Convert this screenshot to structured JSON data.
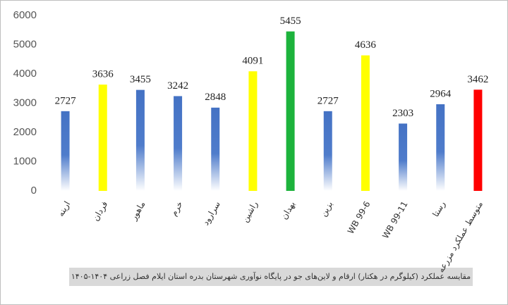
{
  "chart_data": {
    "type": "bar",
    "title": "مقایسه عملکرد (کیلوگرم در هکتار) ارقام و لاین‌های جو در پایگاه نوآوری شهرستان بدره استان ایلام فصل زراعی ۱۴۰۴-۱۴۰۵",
    "categories": [
      "ارینه",
      "فردان",
      "ماهور",
      "خرم",
      "سرارود",
      "راشین",
      "بهدان",
      "بزین",
      "WB 99-6",
      "WB 99-11",
      "رستا",
      "متوسط عملکرد مزرعه"
    ],
    "values": [
      2727,
      3636,
      3455,
      3242,
      2848,
      4091,
      5455,
      2727,
      4636,
      2303,
      2964,
      3462
    ],
    "colors": [
      "#4472c4",
      "#ffff00",
      "#4472c4",
      "#4472c4",
      "#4472c4",
      "#ffff00",
      "#1db33c",
      "#4472c4",
      "#ffff00",
      "#4472c4",
      "#4472c4",
      "#ff0000"
    ],
    "gradient_color": "#4472c4",
    "ylim": [
      0,
      6000
    ],
    "yticks": [
      0,
      1000,
      2000,
      3000,
      4000,
      5000,
      6000
    ],
    "grid": false
  }
}
